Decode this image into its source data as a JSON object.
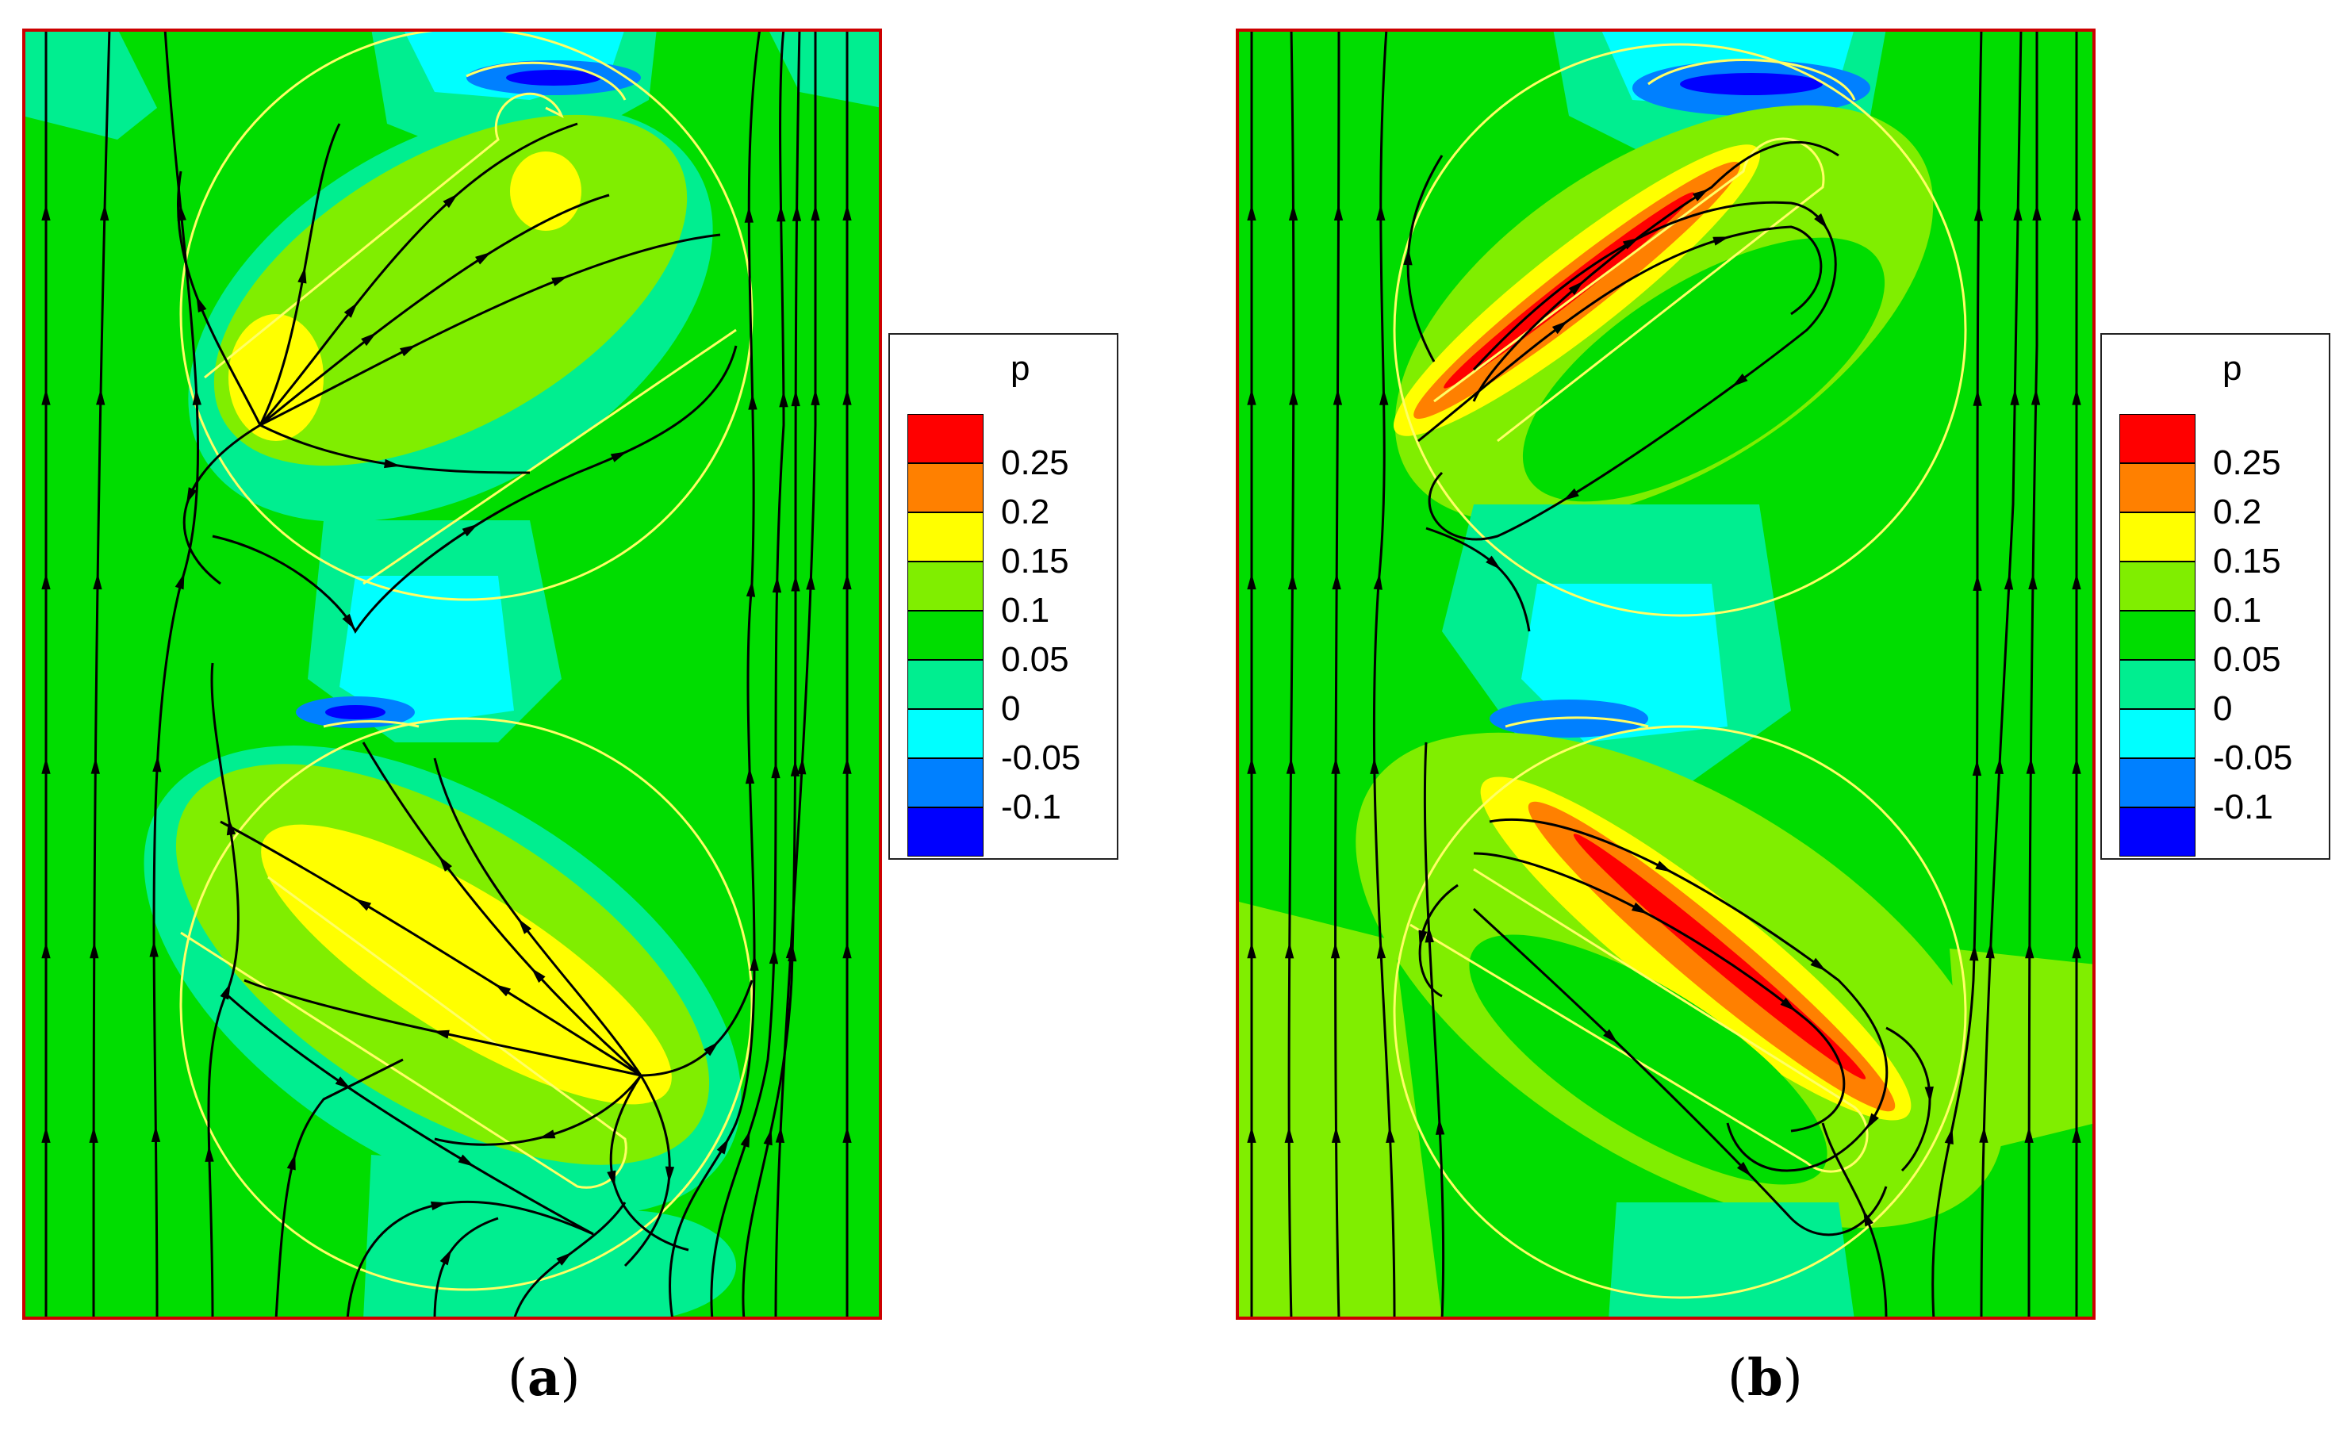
{
  "panels": [
    {
      "id": "a",
      "caption_letter": "a"
    },
    {
      "id": "b",
      "caption_letter": "b"
    }
  ],
  "legend": {
    "title": "p",
    "levels": [
      {
        "label": "0.25",
        "color": "#ff0000"
      },
      {
        "label": "0.2",
        "color": "#ff8000"
      },
      {
        "label": "0.15",
        "color": "#ffff00"
      },
      {
        "label": "0.1",
        "color": "#80ee00"
      },
      {
        "label": "0.05",
        "color": "#00dd00"
      },
      {
        "label": "0",
        "color": "#00ee90"
      },
      {
        "label": "-0.05",
        "color": "#00ffff"
      },
      {
        "label": "-0.1",
        "color": "#0080ff"
      },
      {
        "label": "",
        "color": "#0000ff"
      }
    ]
  },
  "colors": {
    "frame": "#cc0000",
    "streamline": "#000000",
    "outline": "#ffff66"
  }
}
